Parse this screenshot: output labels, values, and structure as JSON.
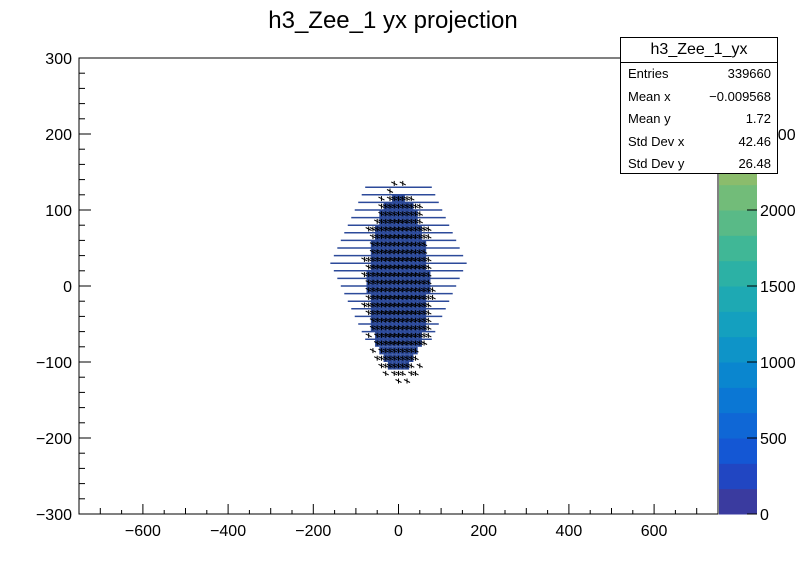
{
  "chart_data": {
    "type": "heatmap",
    "title": "h3_Zee_1 yx projection",
    "xlabel": "",
    "ylabel": "",
    "xlim": [
      -750,
      750
    ],
    "ylim": [
      -300,
      300
    ],
    "x_ticks": [
      -600,
      -400,
      -200,
      0,
      200,
      400,
      600
    ],
    "x_tick_labels": [
      "−600",
      "−400",
      "−200",
      "0",
      "200",
      "400",
      "600"
    ],
    "y_ticks": [
      -300,
      -200,
      -100,
      0,
      100,
      200,
      300
    ],
    "y_tick_labels": [
      "−300",
      "−200",
      "−100",
      "0",
      "100",
      "200",
      "300"
    ],
    "z_ticks": [
      0,
      500,
      1000,
      1500,
      2000,
      2500
    ],
    "z_tick_labels": [
      "0",
      "500",
      "1000",
      "1500",
      "2000",
      "2500"
    ],
    "z_range": [
      0,
      3000
    ],
    "palette": [
      "#3a3b9f",
      "#2146c2",
      "#1457d4",
      "#0f67d6",
      "#0b77d4",
      "#0a86cf",
      "#0e94c8",
      "#14a0bf",
      "#1ea9b3",
      "#2cb1a5",
      "#40b796",
      "#59ba87",
      "#72bc79",
      "#8bbc6c",
      "#a4bb63",
      "#bcb95d",
      "#d1b65a",
      "#e0b558"
    ],
    "bin_color": "#2c4a9a",
    "marker_color": "#000000",
    "distribution": {
      "mean_x": -0.009568,
      "mean_y": 1.72,
      "std_x": 42.46,
      "std_y": 26.48
    },
    "grid": false
  },
  "stats": {
    "title": "h3_Zee_1_yx",
    "rows": [
      {
        "label": "Entries",
        "value": "339660"
      },
      {
        "label": "Mean x",
        "value": "−0.009568"
      },
      {
        "label": "Mean y",
        "value": "1.72"
      },
      {
        "label": "Std Dev x",
        "value": "42.46"
      },
      {
        "label": "Std Dev y",
        "value": "26.48"
      }
    ]
  }
}
